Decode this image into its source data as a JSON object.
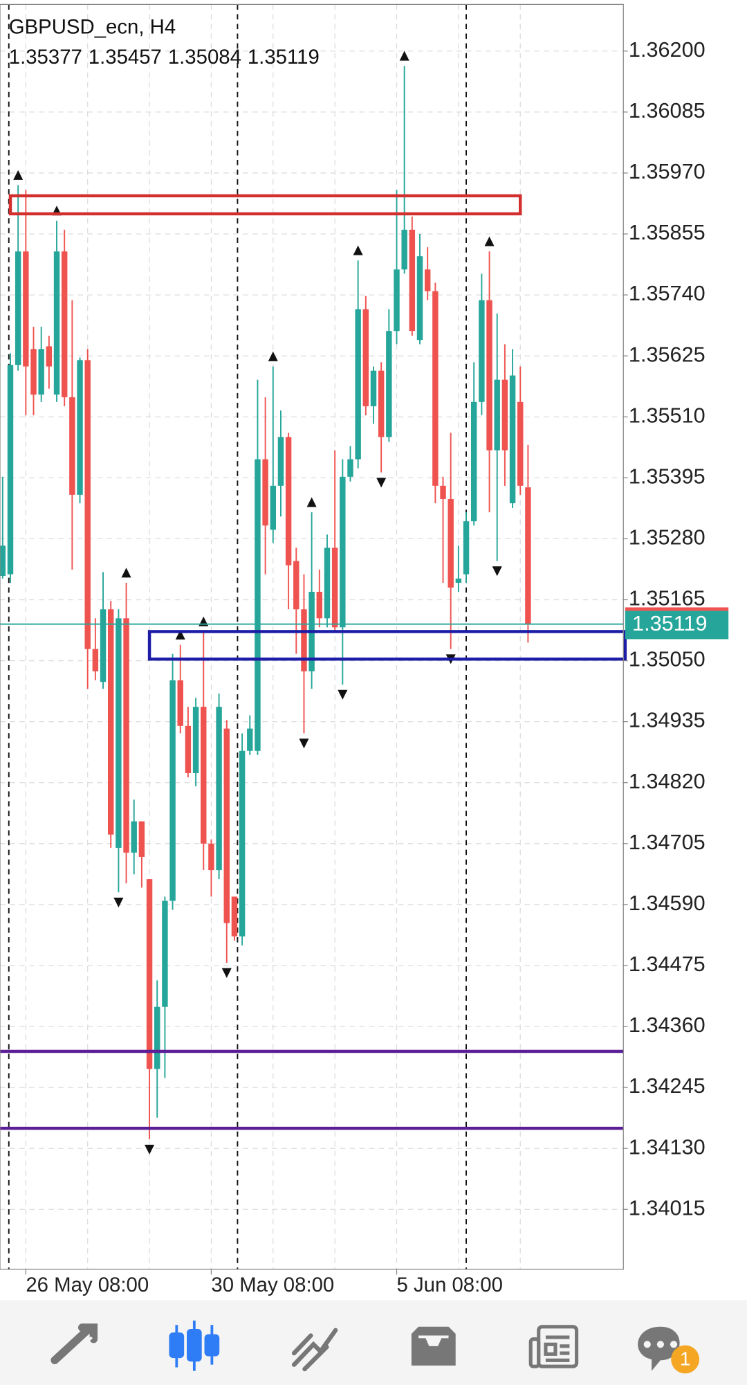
{
  "chart_data": {
    "type": "candlestick",
    "title": "GBPUSD_ecn, H4",
    "categories": [
      null,
      null,
      null,
      "26 May 08:00",
      null,
      null,
      null,
      null,
      null,
      null,
      null,
      null,
      null,
      null,
      null,
      null,
      null,
      null,
      null,
      null,
      null,
      null,
      null,
      null,
      null,
      null,
      null,
      "30 May 08:00",
      null,
      null,
      null,
      null,
      null,
      null,
      null,
      null,
      null,
      null,
      null,
      null,
      null,
      null,
      null,
      null,
      null,
      null,
      null,
      null,
      null,
      null,
      null,
      "5 Jun 08:00",
      null,
      null,
      null,
      null,
      null,
      null,
      null,
      null,
      null,
      null,
      null,
      null,
      null,
      null,
      null,
      null,
      null
    ],
    "open": [
      1.3521,
      1.35213,
      1.35608,
      1.35822,
      1.35638,
      1.35552,
      1.35643,
      1.35552,
      1.35822,
      1.35547,
      1.35363,
      1.35617,
      1.35072,
      1.3501,
      1.35147,
      1.34697,
      1.3513,
      1.34688,
      1.34747,
      1.34638,
      1.3428,
      1.34397,
      1.34597,
      1.35013,
      1.34927,
      1.34838,
      1.34963,
      1.34705,
      1.34655,
      1.34922,
      1.34605,
      1.3453,
      1.3488,
      1.3488,
      1.3543,
      1.35297,
      1.3538,
      1.35472,
      1.35238,
      1.35147,
      1.3503,
      1.3518,
      1.3513,
      1.35263,
      1.35113,
      1.35397,
      1.3543,
      1.35713,
      1.3553,
      1.35597,
      1.35472,
      1.35672,
      1.35788,
      1.35863,
      1.35655,
      1.35788,
      1.35747,
      1.3538,
      1.35355,
      1.35197,
      1.35213,
      1.35313,
      1.35538,
      1.3573,
      1.35447,
      1.3558,
      1.35347,
      1.35538,
      1.35377
    ],
    "high": [
      1.35397,
      1.3563,
      1.35947,
      1.35938,
      1.3568,
      1.3568,
      1.35663,
      1.3588,
      1.35863,
      1.3573,
      1.35622,
      1.35638,
      1.3513,
      1.35217,
      1.35163,
      1.35147,
      1.35197,
      1.34788,
      1.34747,
      1.34638,
      1.34447,
      1.34605,
      1.35063,
      1.3508,
      1.34963,
      1.3498,
      1.35105,
      1.34713,
      1.34988,
      1.34938,
      1.34605,
      1.34913,
      1.34947,
      1.3558,
      1.35547,
      1.35605,
      1.35522,
      1.3548,
      1.35263,
      1.35213,
      1.3533,
      1.35222,
      1.35288,
      1.35447,
      1.3543,
      1.35455,
      1.35805,
      1.35738,
      1.35605,
      1.35613,
      1.35713,
      1.35938,
      1.36172,
      1.35888,
      1.35855,
      1.3583,
      1.35763,
      1.35397,
      1.3548,
      1.35267,
      1.3533,
      1.35613,
      1.3578,
      1.35822,
      1.35705,
      1.35647,
      1.35638,
      1.35605,
      1.35457
    ],
    "low": [
      1.35205,
      1.35197,
      1.35597,
      1.35513,
      1.35513,
      1.35538,
      1.35563,
      1.35538,
      1.3553,
      1.35222,
      1.35347,
      1.34997,
      1.35013,
      1.34997,
      1.34697,
      1.34613,
      1.3463,
      1.34647,
      1.34622,
      1.34147,
      1.34188,
      1.34263,
      1.3458,
      1.34913,
      1.3483,
      1.34813,
      1.34655,
      1.34605,
      1.34638,
      1.3448,
      1.34522,
      1.34513,
      1.34872,
      1.34872,
      1.35213,
      1.35272,
      1.35322,
      1.35147,
      1.35063,
      1.34913,
      1.34997,
      1.35113,
      1.35113,
      1.35105,
      1.35005,
      1.35388,
      1.35413,
      1.35513,
      1.35497,
      1.35405,
      1.35463,
      1.35647,
      1.3578,
      1.35663,
      1.35647,
      1.3573,
      1.35347,
      1.35197,
      1.35072,
      1.3518,
      1.35197,
      1.35305,
      1.35513,
      1.3533,
      1.35238,
      1.3538,
      1.35338,
      1.35363,
      1.35084
    ],
    "close": [
      1.35267,
      1.35608,
      1.35822,
      1.35605,
      1.35552,
      1.35638,
      1.35605,
      1.35822,
      1.35547,
      1.35363,
      1.35617,
      1.35072,
      1.3503,
      1.35147,
      1.34722,
      1.3513,
      1.34688,
      1.34747,
      1.3468,
      1.3428,
      1.34397,
      1.34597,
      1.35013,
      1.34927,
      1.34838,
      1.34963,
      1.34705,
      1.34655,
      1.34963,
      1.34555,
      1.3453,
      1.3488,
      1.34922,
      1.3543,
      1.35305,
      1.3538,
      1.35472,
      1.3523,
      1.35147,
      1.3503,
      1.3518,
      1.3513,
      1.35263,
      1.35113,
      1.35397,
      1.3543,
      1.35713,
      1.3553,
      1.35597,
      1.35472,
      1.35672,
      1.35788,
      1.35863,
      1.35672,
      1.35813,
      1.35747,
      1.3538,
      1.35355,
      1.35188,
      1.35205,
      1.35313,
      1.35538,
      1.3573,
      1.35447,
      1.3558,
      1.35447,
      1.35588,
      1.3538,
      1.35119
    ],
    "up_color": "#26a69a",
    "down_color": "#ef5350",
    "ylim": [
      1.33902,
      1.36288
    ],
    "yticks": [
      {
        "value": 1.362,
        "label": "1.36200"
      },
      {
        "value": 1.36085,
        "label": "1.36085"
      },
      {
        "value": 1.3597,
        "label": "1.35970"
      },
      {
        "value": 1.35855,
        "label": "1.35855"
      },
      {
        "value": 1.3574,
        "label": "1.35740"
      },
      {
        "value": 1.35625,
        "label": "1.35625"
      },
      {
        "value": 1.3551,
        "label": "1.35510"
      },
      {
        "value": 1.35395,
        "label": "1.35395"
      },
      {
        "value": 1.3528,
        "label": "1.35280"
      },
      {
        "value": 1.35165,
        "label": "1.35165"
      },
      {
        "value": 1.3505,
        "label": "1.35050"
      },
      {
        "value": 1.34935,
        "label": "1.34935"
      },
      {
        "value": 1.3482,
        "label": "1.34820"
      },
      {
        "value": 1.34705,
        "label": "1.34705"
      },
      {
        "value": 1.3459,
        "label": "1.34590"
      },
      {
        "value": 1.34475,
        "label": "1.34475"
      },
      {
        "value": 1.3436,
        "label": "1.34360"
      },
      {
        "value": 1.34245,
        "label": "1.34245"
      },
      {
        "value": 1.3413,
        "label": "1.34130"
      },
      {
        "value": 1.34015,
        "label": "1.34015"
      }
    ],
    "grid": true,
    "levels": [
      {
        "value": 1.34313,
        "color": "#5b1e96"
      },
      {
        "value": 1.34168,
        "color": "#5b1e96"
      }
    ],
    "zones": [
      {
        "low": 1.35893,
        "high": 1.35927,
        "x_start": 1,
        "x_end": 67,
        "color": "#d32f2f"
      },
      {
        "low": 1.35053,
        "high": 1.35105,
        "x_start": 19,
        "color": "#1c1ca6"
      }
    ]
  },
  "toolbar": {
    "badge": 1
  }
}
